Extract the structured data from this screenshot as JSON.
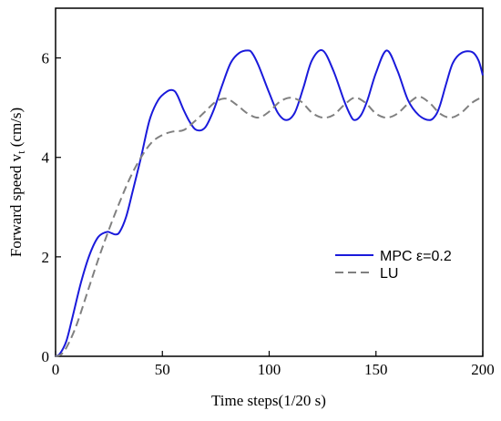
{
  "chart_data": {
    "type": "line",
    "title": "",
    "xlabel": "Time  steps(1/20 s)",
    "ylabel_main": "Forward speed v",
    "ylabel_sub": "t",
    "ylabel_unit": " (cm/s)",
    "xlim": [
      0,
      200
    ],
    "ylim": [
      0,
      7
    ],
    "xticks": [
      "0",
      "50",
      "100",
      "150",
      "200"
    ],
    "yticks": [
      "0",
      "2",
      "4",
      "6"
    ],
    "grid": false,
    "legend_position": "lower-right",
    "series": [
      {
        "name": "MPC ε=0.2",
        "color": "#1a1adb",
        "style": "solid",
        "x": [
          0,
          2,
          5,
          8,
          12,
          16,
          20,
          24,
          26,
          28,
          30,
          33,
          36,
          40,
          44,
          48,
          52,
          55,
          57,
          60,
          63,
          66,
          70,
          74,
          78,
          82,
          86,
          90,
          92,
          95,
          100,
          104,
          108,
          112,
          116,
          120,
          125,
          130,
          135,
          138,
          140,
          143,
          146,
          150,
          155,
          160,
          165,
          170,
          175,
          178,
          180,
          183,
          186,
          190,
          195,
          198,
          200
        ],
        "y": [
          0,
          0.05,
          0.3,
          0.8,
          1.5,
          2.05,
          2.4,
          2.5,
          2.48,
          2.45,
          2.5,
          2.8,
          3.3,
          4.0,
          4.75,
          5.15,
          5.32,
          5.35,
          5.25,
          4.95,
          4.7,
          4.55,
          4.6,
          4.95,
          5.45,
          5.9,
          6.1,
          6.15,
          6.1,
          5.85,
          5.3,
          4.9,
          4.75,
          4.9,
          5.4,
          5.95,
          6.15,
          5.75,
          5.15,
          4.85,
          4.75,
          4.85,
          5.15,
          5.7,
          6.15,
          5.75,
          5.15,
          4.85,
          4.75,
          4.85,
          5.05,
          5.5,
          5.9,
          6.1,
          6.12,
          5.95,
          5.65
        ]
      },
      {
        "name": "LU",
        "color": "#808080",
        "style": "dashed",
        "x": [
          0,
          3,
          6,
          10,
          15,
          20,
          25,
          30,
          35,
          40,
          45,
          50,
          55,
          60,
          65,
          70,
          75,
          80,
          85,
          90,
          95,
          100,
          105,
          110,
          115,
          120,
          125,
          130,
          135,
          140,
          145,
          150,
          155,
          160,
          165,
          170,
          175,
          180,
          185,
          190,
          195,
          200
        ],
        "y": [
          0,
          0.05,
          0.25,
          0.65,
          1.3,
          1.95,
          2.55,
          3.1,
          3.6,
          4.0,
          4.3,
          4.45,
          4.52,
          4.55,
          4.72,
          4.92,
          5.12,
          5.18,
          5.05,
          4.88,
          4.8,
          4.92,
          5.12,
          5.2,
          5.12,
          4.9,
          4.8,
          4.85,
          5.05,
          5.2,
          5.1,
          4.88,
          4.8,
          4.88,
          5.08,
          5.22,
          5.1,
          4.88,
          4.8,
          4.9,
          5.1,
          5.22
        ]
      }
    ]
  }
}
